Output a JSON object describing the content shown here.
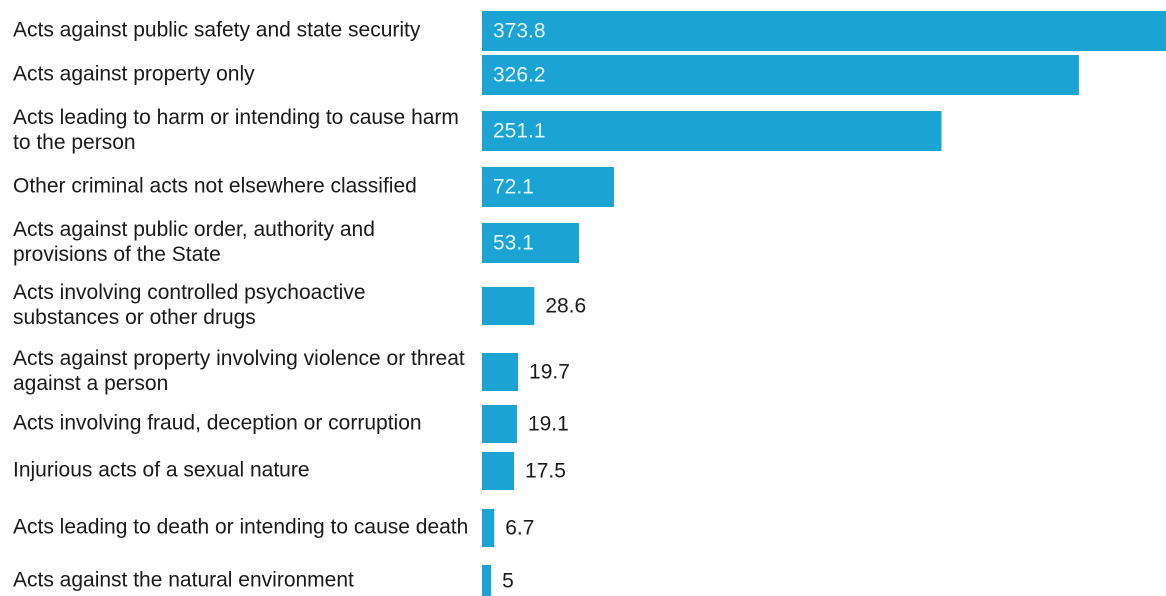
{
  "chart_data": {
    "type": "bar",
    "orientation": "horizontal",
    "categories": [
      "Acts against public safety and state security",
      "Acts against property only",
      "Acts leading to harm or intending to cause harm to the person",
      "Other criminal acts not elsewhere classified",
      "Acts against public order, authority and provisions of the State",
      "Acts involving controlled psychoactive substances or other drugs",
      "Acts against property involving violence or threat against a person",
      "Acts involving fraud, deception or corruption",
      "Injurious acts of a sexual nature",
      "Acts leading to death or intending to cause death",
      "Acts against the natural environment"
    ],
    "values": [
      373.8,
      326.2,
      251.1,
      72.1,
      53.1,
      28.6,
      19.7,
      19.1,
      17.5,
      6.7,
      5
    ],
    "value_labels": [
      "373.8",
      "326.2",
      "251.1",
      "72.1",
      "53.1",
      "28.6",
      "19.7",
      "19.1",
      "17.5",
      "6.7",
      "5"
    ],
    "bar_color": "#1aa3d3",
    "label_inside_color": "#e6f5fb",
    "label_outside_color": "#1a1a1a",
    "xlim": [
      0,
      373.8
    ],
    "grid": false,
    "legend": "none",
    "title": "",
    "xlabel": "",
    "ylabel": ""
  }
}
